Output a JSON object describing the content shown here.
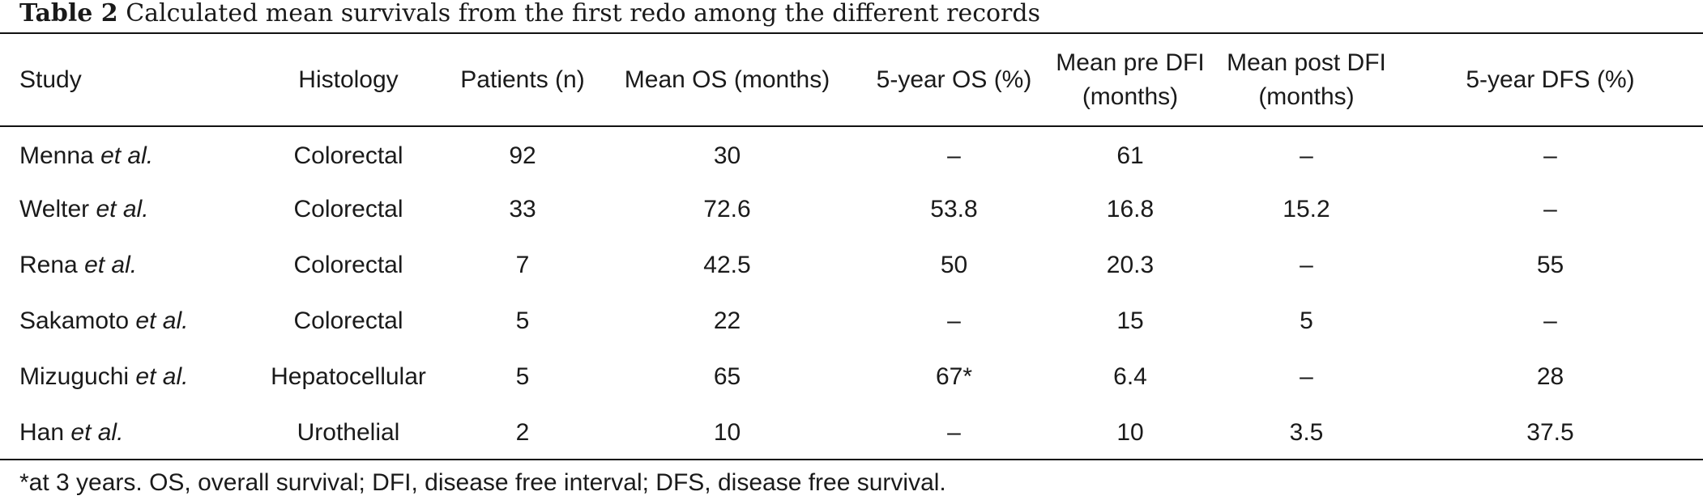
{
  "caption": {
    "label": "Table 2",
    "text": "Calculated mean survivals from the first redo among the different records"
  },
  "table": {
    "headers": [
      {
        "line1": "Study",
        "line2": ""
      },
      {
        "line1": "Histology",
        "line2": ""
      },
      {
        "line1": "Patients (n)",
        "line2": ""
      },
      {
        "line1": "Mean OS (months)",
        "line2": ""
      },
      {
        "line1": "5-year OS (%)",
        "line2": ""
      },
      {
        "line1": "Mean pre DFI",
        "line2": "(months)"
      },
      {
        "line1": "Mean post DFI",
        "line2": "(months)"
      },
      {
        "line1": "5-year DFS (%)",
        "line2": ""
      }
    ],
    "rows": [
      {
        "author": "Menna",
        "etal": "et al.",
        "cells": [
          "Colorectal",
          "92",
          "30",
          "–",
          "61",
          "–",
          "–"
        ]
      },
      {
        "author": "Welter",
        "etal": "et al.",
        "cells": [
          "Colorectal",
          "33",
          "72.6",
          "53.8",
          "16.8",
          "15.2",
          "–"
        ]
      },
      {
        "author": "Rena",
        "etal": "et al.",
        "cells": [
          "Colorectal",
          "7",
          "42.5",
          "50",
          "20.3",
          "–",
          "55"
        ]
      },
      {
        "author": "Sakamoto",
        "etal": "et al.",
        "cells": [
          "Colorectal",
          "5",
          "22",
          "–",
          "15",
          "5",
          "–"
        ]
      },
      {
        "author": "Mizuguchi",
        "etal": "et al.",
        "cells": [
          "Hepatocellular",
          "5",
          "65",
          "67*",
          "6.4",
          "–",
          "28"
        ]
      },
      {
        "author": "Han",
        "etal": "et al.",
        "cells": [
          "Urothelial",
          "2",
          "10",
          "–",
          "10",
          "3.5",
          "37.5"
        ]
      }
    ]
  },
  "footnote": "*at 3 years. OS, overall survival; DFI, disease free interval; DFS, disease free survival."
}
